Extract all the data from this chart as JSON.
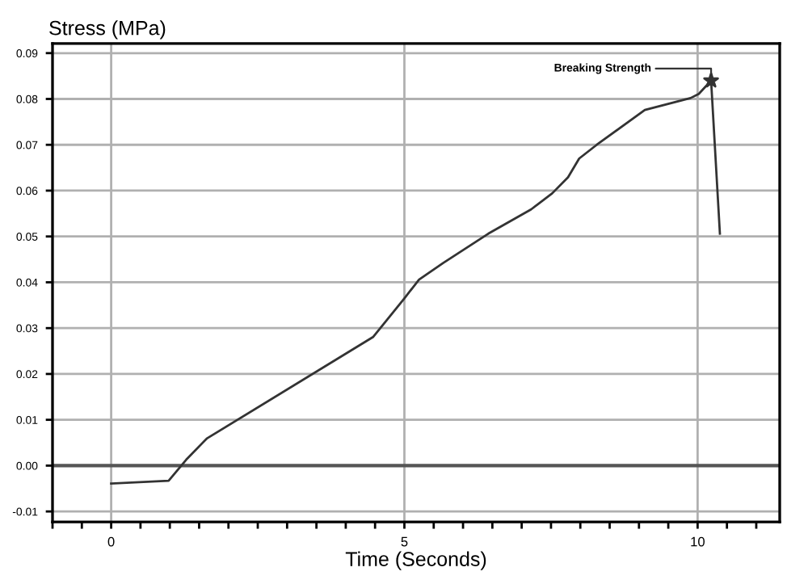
{
  "chart_data": {
    "type": "line",
    "xlabel": "Time (Seconds)",
    "ylabel": "Stress (MPa)",
    "series": [
      {
        "color": "#333333",
        "x": [
          0,
          0.98,
          1.28,
          1.63,
          4.47,
          5.0,
          5.25,
          5.66,
          6.43,
          7.16,
          7.52,
          7.79,
          7.98,
          8.28,
          9.1,
          9.88,
          10.02,
          10.23,
          10.38
        ],
        "values": [
          -0.0039,
          -0.0033,
          0.0013,
          0.0059,
          0.0281,
          0.0365,
          0.0406,
          0.0442,
          0.0506,
          0.0559,
          0.0594,
          0.0629,
          0.067,
          0.07,
          0.0776,
          0.0802,
          0.0811,
          0.084,
          0.0506
        ]
      },
      {
        "type": "scatter",
        "color": "#333333",
        "marker": "star",
        "x": [
          10.23
        ],
        "values": [
          0.084
        ]
      }
    ],
    "annotations": [
      {
        "text": "Breaking Strength",
        "x": 10.23,
        "y": 0.084
      }
    ],
    "xlim": [
      -1,
      11.4
    ],
    "ylim": [
      -0.0123,
      0.0921
    ],
    "xticks": [
      {
        "value": -1,
        "label": null
      },
      {
        "value": -0.5,
        "label": null
      },
      0,
      {
        "value": 0.5,
        "label": null
      },
      {
        "value": 1,
        "label": null
      },
      {
        "value": 1.5,
        "label": null
      },
      {
        "value": 2,
        "label": null
      },
      {
        "value": 2.5,
        "label": null
      },
      {
        "value": 3,
        "label": null
      },
      {
        "value": 3.5,
        "label": null
      },
      {
        "value": 4,
        "label": null
      },
      {
        "value": 4.5,
        "label": null
      },
      5,
      {
        "value": 5.5,
        "label": null
      },
      {
        "value": 6,
        "label": null
      },
      {
        "value": 6.5,
        "label": null
      },
      {
        "value": 7,
        "label": null
      },
      {
        "value": 7.5,
        "label": null
      },
      {
        "value": 8,
        "label": null
      },
      {
        "value": 8.5,
        "label": null
      },
      {
        "value": 9,
        "label": null
      },
      {
        "value": 9.5,
        "label": null
      },
      10,
      {
        "value": 10.5,
        "label": null
      },
      {
        "value": 11,
        "label": null
      }
    ],
    "yticks": [
      -0.01,
      {
        "value": 0,
        "label": "0.00"
      },
      0.01,
      0.02,
      0.03,
      0.04,
      0.05,
      0.06,
      0.07,
      0.08,
      0.09
    ],
    "ref_lines": [
      {
        "axis": "y",
        "value": 0,
        "color": "#555555"
      }
    ],
    "grid": true,
    "legend": false
  }
}
